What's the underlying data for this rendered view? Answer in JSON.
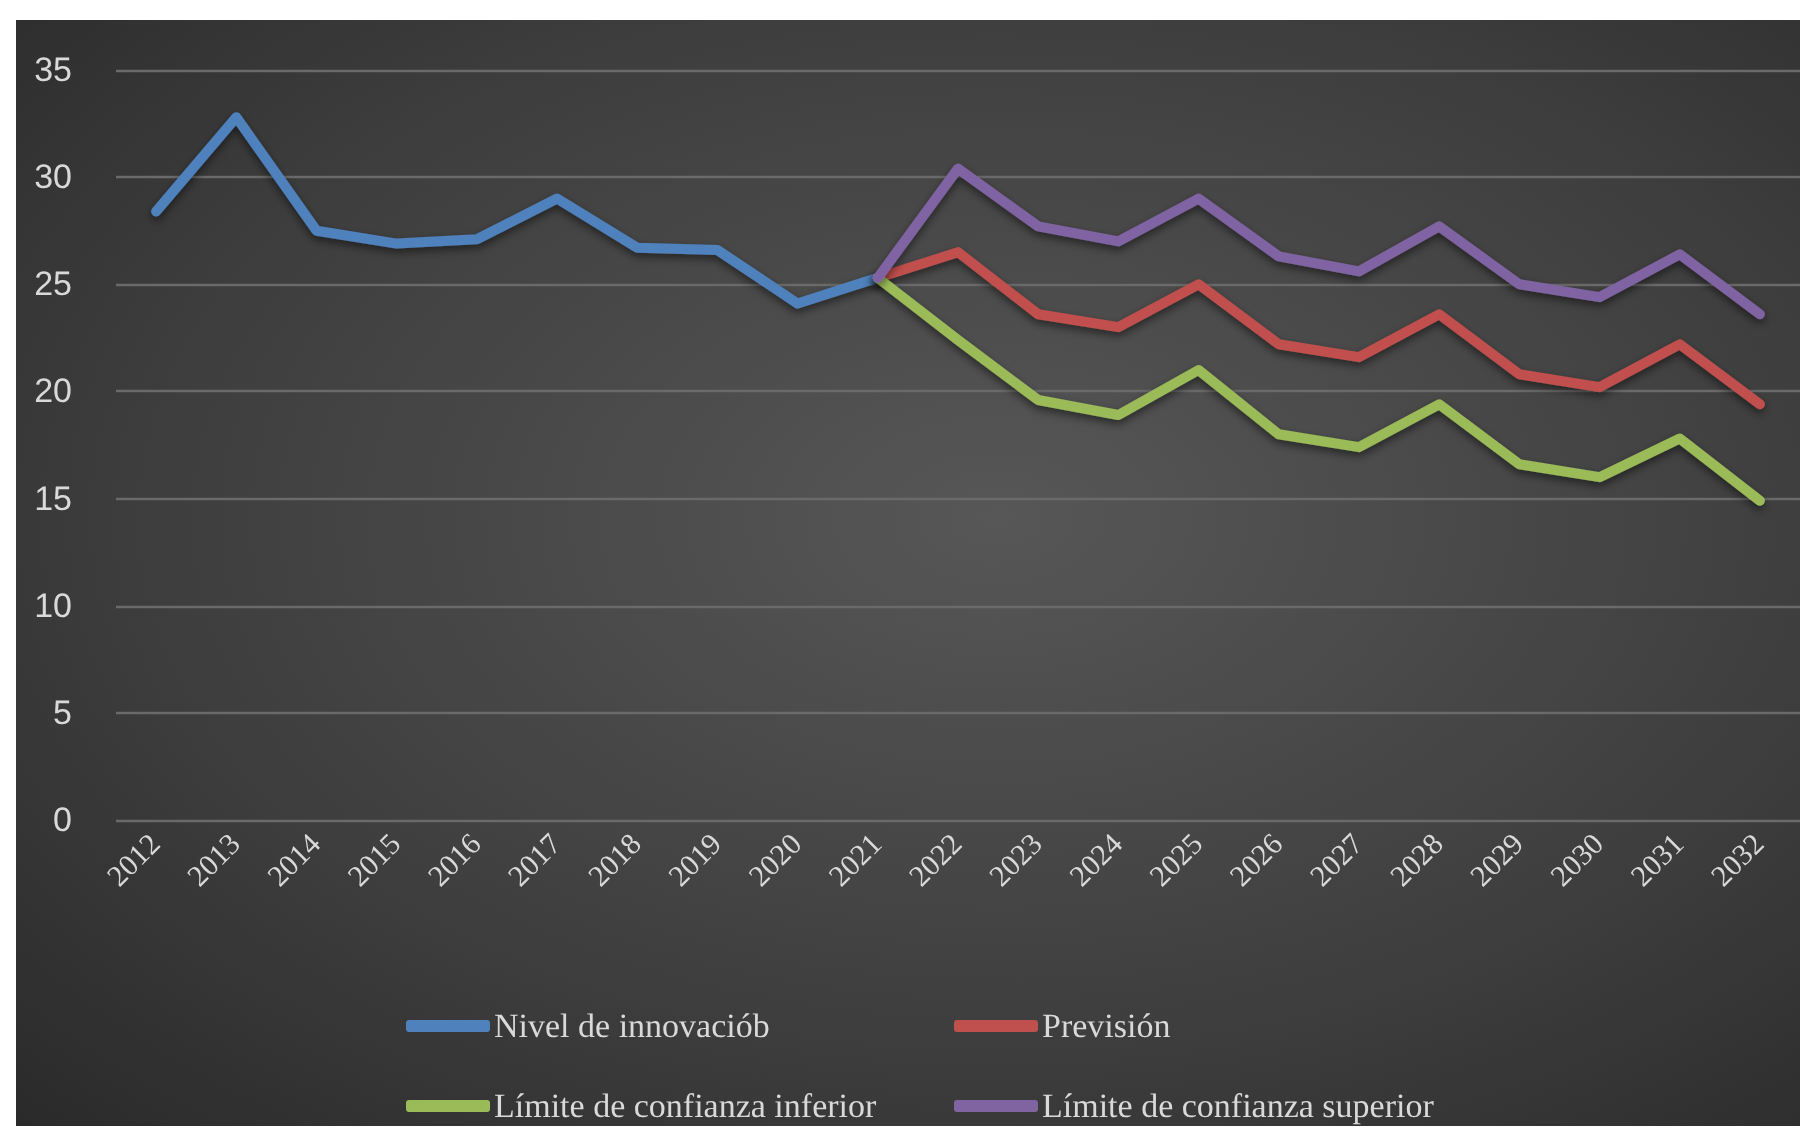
{
  "chart_data": {
    "type": "line",
    "categories": [
      "2012",
      "2013",
      "2014",
      "2015",
      "2016",
      "2017",
      "2018",
      "2019",
      "2020",
      "2021",
      "2022",
      "2023",
      "2024",
      "2025",
      "2026",
      "2027",
      "2028",
      "2029",
      "2030",
      "2031",
      "2032"
    ],
    "series": [
      {
        "name": "Nivel de innovaciób",
        "color": "#4f81bd",
        "values": [
          28.4,
          32.8,
          27.5,
          26.9,
          27.1,
          29.0,
          26.7,
          26.6,
          24.1,
          25.3,
          null,
          null,
          null,
          null,
          null,
          null,
          null,
          null,
          null,
          null,
          null
        ]
      },
      {
        "name": "Previsión",
        "color": "#c0504d",
        "values": [
          null,
          null,
          null,
          null,
          null,
          null,
          null,
          null,
          null,
          25.3,
          26.5,
          23.6,
          23.0,
          25.0,
          22.2,
          21.6,
          23.6,
          20.8,
          20.2,
          22.2,
          19.4
        ]
      },
      {
        "name": "Límite de confianza inferior",
        "color": "#9bbb59",
        "values": [
          null,
          null,
          null,
          null,
          null,
          null,
          null,
          null,
          null,
          25.3,
          22.4,
          19.6,
          18.9,
          21.0,
          18.0,
          17.4,
          19.4,
          16.6,
          16.0,
          17.8,
          14.9
        ]
      },
      {
        "name": "Límite de confianza superior",
        "color": "#8064a2",
        "values": [
          null,
          null,
          null,
          null,
          null,
          null,
          null,
          null,
          null,
          25.3,
          30.4,
          27.7,
          27.0,
          29.0,
          26.3,
          25.6,
          27.7,
          25.0,
          24.4,
          26.4,
          23.6
        ]
      }
    ],
    "ylim": [
      0,
      35
    ],
    "yticks": [
      0,
      5,
      10,
      15,
      20,
      25,
      30,
      35
    ],
    "grid": "y",
    "legend": "bottom",
    "marker": "none",
    "line_style": "solid"
  }
}
